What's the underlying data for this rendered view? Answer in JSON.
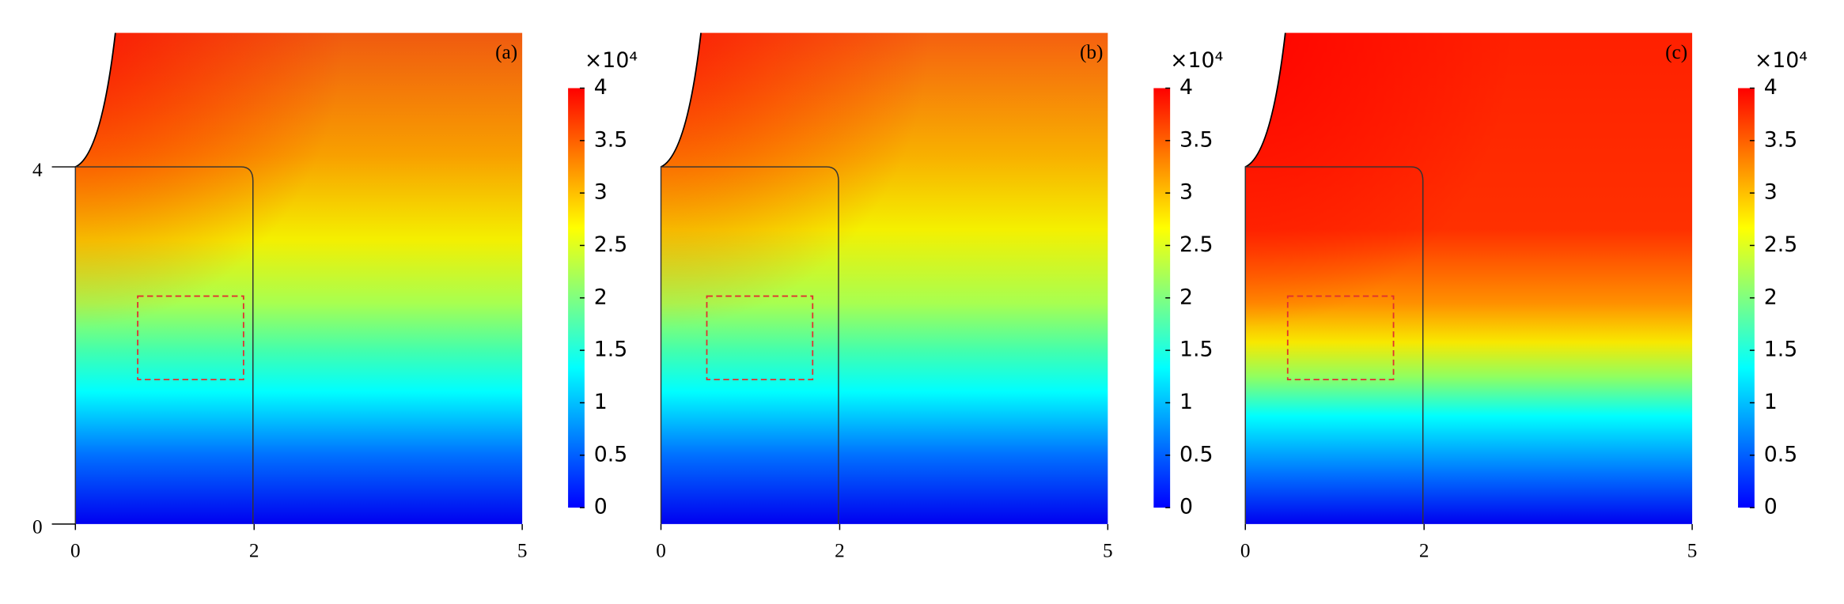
{
  "chart_data": [
    {
      "type": "heatmap",
      "label": "(a)",
      "xlim": [
        0,
        5
      ],
      "ylim": [
        0,
        5.5
      ],
      "xticks": [
        0,
        2,
        5
      ],
      "yticks": [
        0,
        4
      ],
      "colorbar": {
        "label": "×10⁴",
        "lim": [
          0,
          4
        ],
        "ticks": [
          0,
          0.5,
          1,
          1.5,
          2,
          2.5,
          3,
          3.5,
          4
        ],
        "colors": [
          "#0000ff",
          "#0080ff",
          "#00ffff",
          "#80ff80",
          "#ffff00",
          "#ff8000",
          "#ff0000"
        ]
      }
    },
    {
      "type": "heatmap",
      "label": "(b)",
      "xlim": [
        0,
        5
      ],
      "ylim": [
        0,
        5.5
      ],
      "xticks": [
        0,
        2,
        5
      ],
      "colorbar": {
        "label": "×10⁴",
        "lim": [
          0,
          4
        ],
        "ticks": [
          0,
          0.5,
          1,
          1.5,
          2,
          2.5,
          3,
          3.5,
          4
        ],
        "colors": [
          "#0000ff",
          "#0080ff",
          "#00ffff",
          "#80ff80",
          "#ffff00",
          "#ff8000",
          "#ff0000"
        ]
      }
    },
    {
      "type": "heatmap",
      "label": "(c)",
      "xlim": [
        0,
        5
      ],
      "ylim": [
        0,
        5.5
      ],
      "xticks": [
        0,
        2,
        5
      ],
      "colorbar": {
        "label": "×10⁴",
        "lim": [
          0,
          4
        ],
        "ticks": [
          0,
          0.5,
          1,
          1.5,
          2,
          2.5,
          3,
          3.5,
          4
        ],
        "colors": [
          "#0000ff",
          "#0080ff",
          "#00ffff",
          "#80ff80",
          "#ffff00",
          "#ff8000",
          "#ff0000"
        ]
      }
    }
  ]
}
